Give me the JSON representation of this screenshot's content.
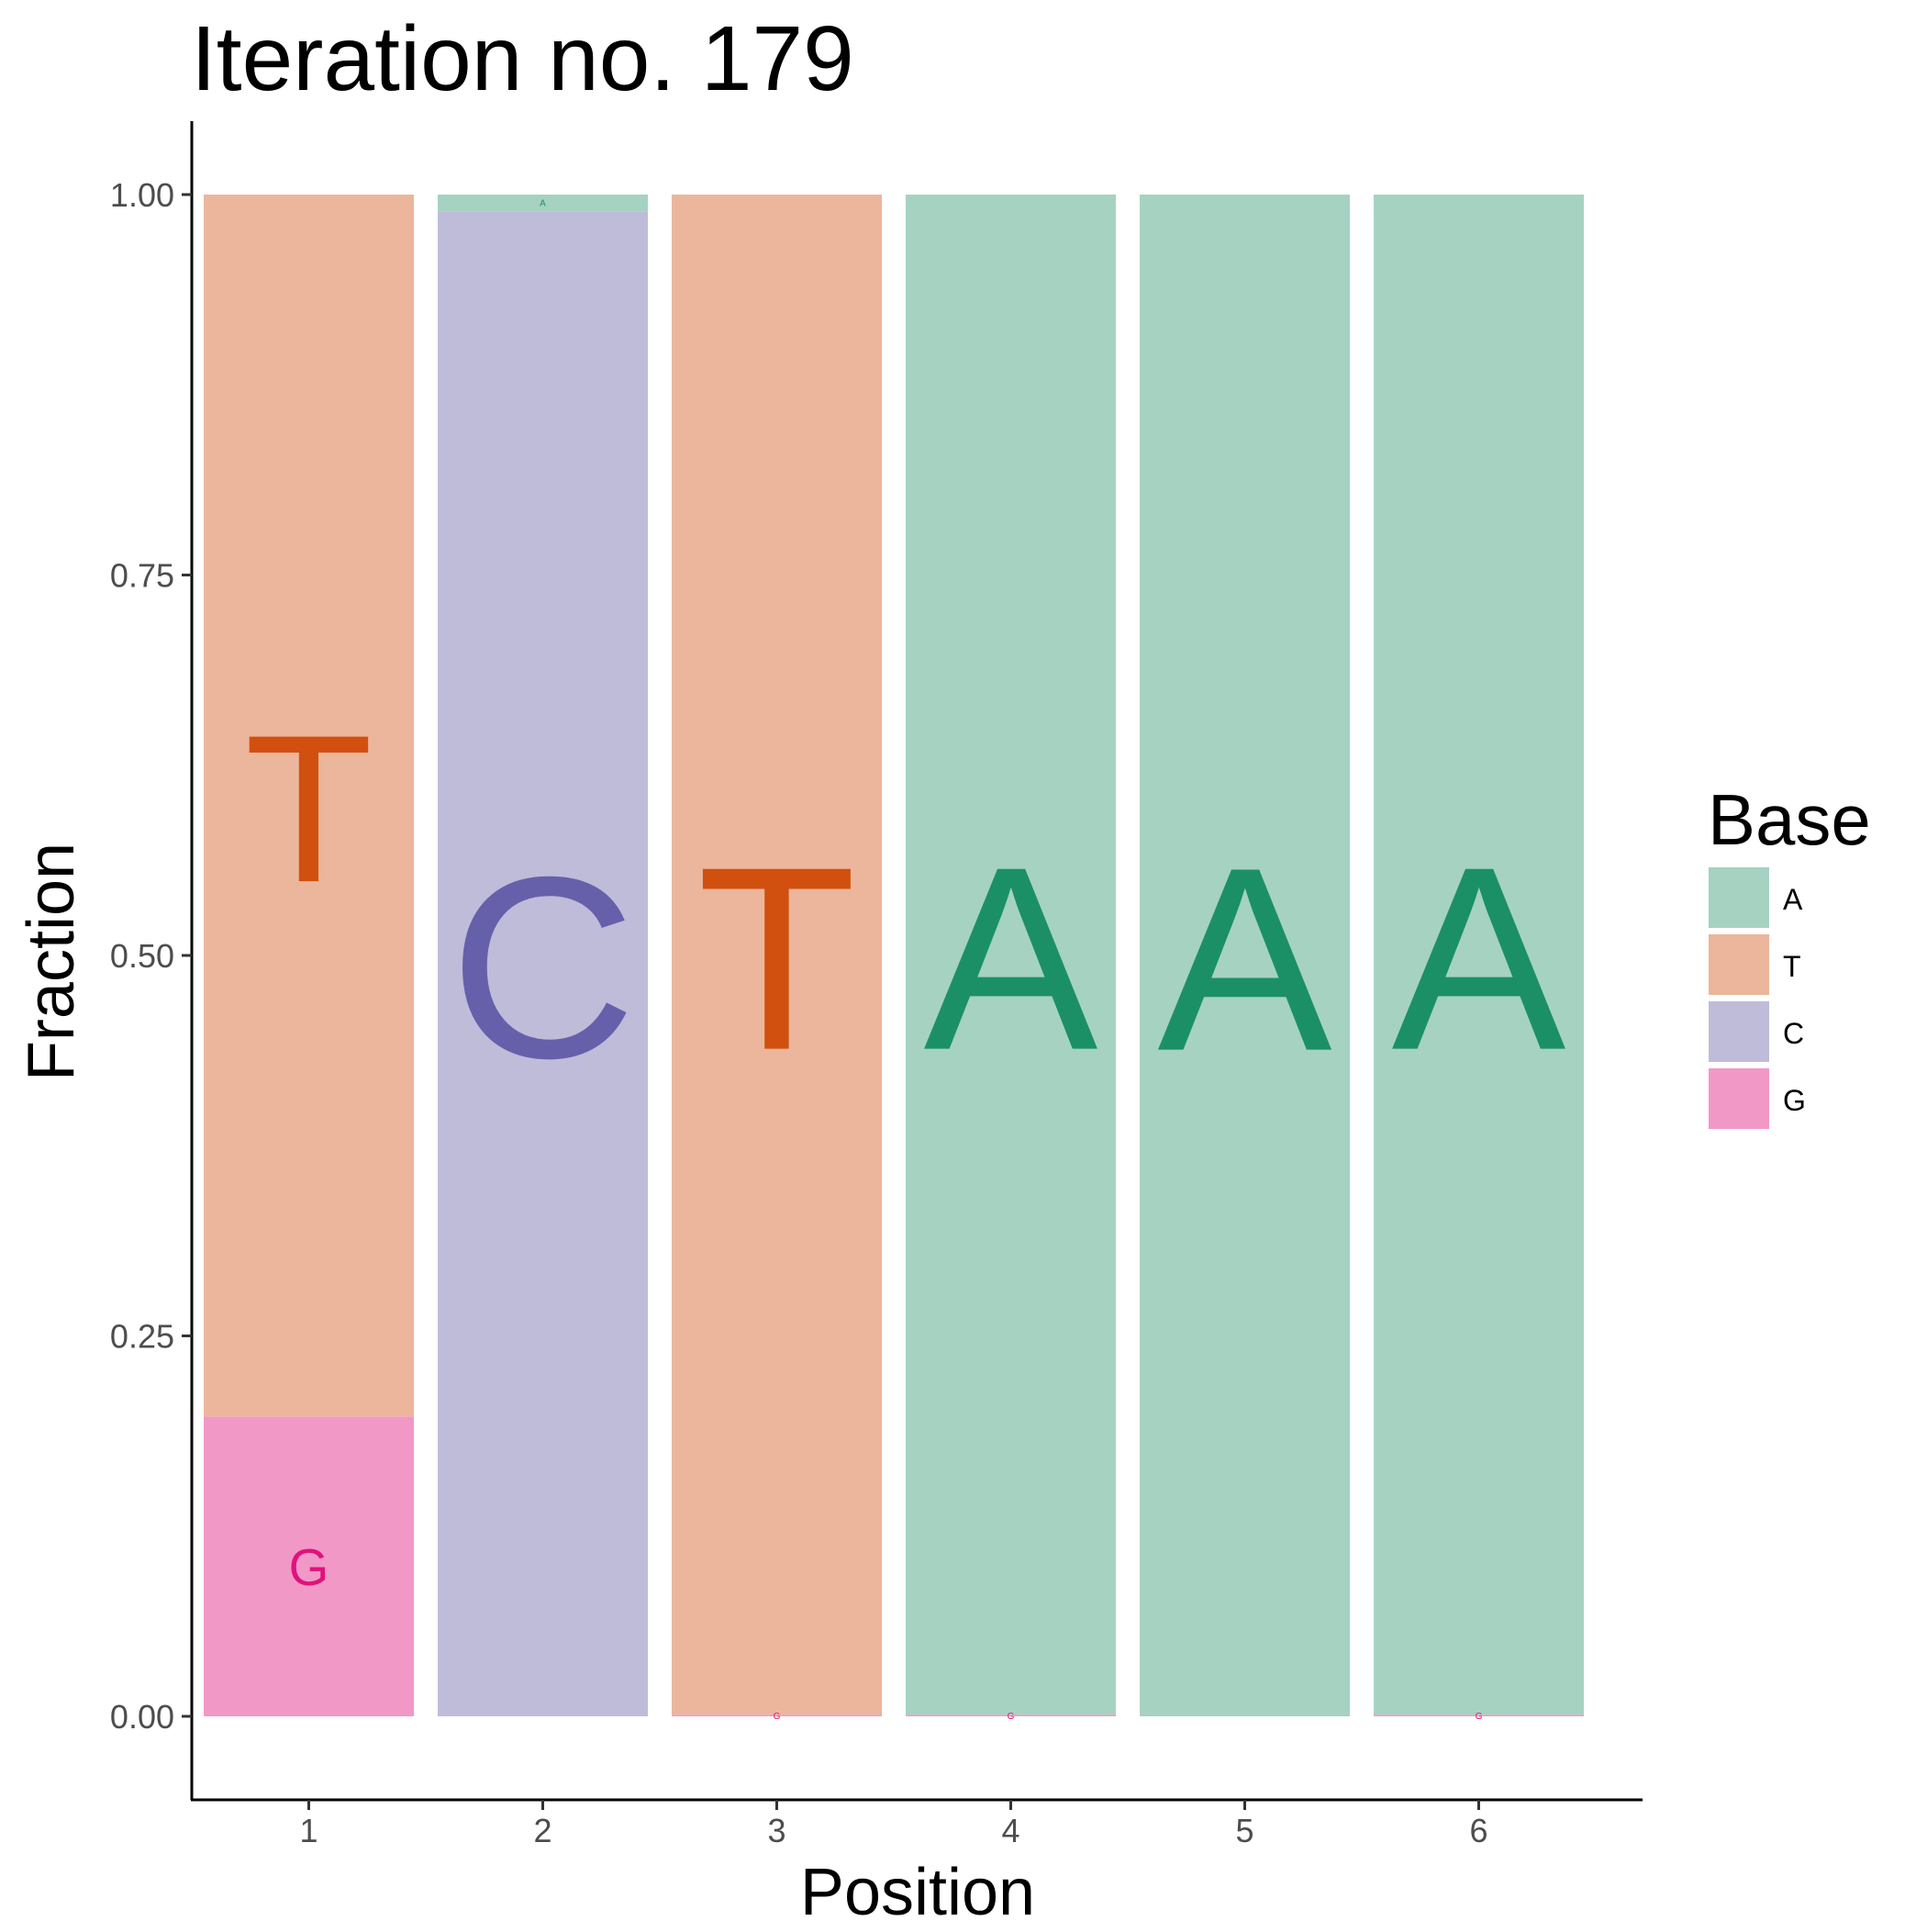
{
  "chart_data": {
    "type": "bar",
    "stacked": true,
    "title": "Iteration no. 179",
    "xlabel": "Position",
    "ylabel": "Fraction",
    "categories": [
      "1",
      "2",
      "3",
      "4",
      "5",
      "6"
    ],
    "ylim": [
      -0.05,
      1.05
    ],
    "yticks": [
      "0.00",
      "0.25",
      "0.50",
      "0.75",
      "1.00"
    ],
    "grid": false,
    "legend": {
      "title": "Base",
      "placement": "right"
    },
    "series": [
      {
        "name": "A",
        "color": "#a6d2c1",
        "letter_color": "#1b9066",
        "values": [
          0.0,
          0.011,
          0.0,
          0.999,
          1.0,
          0.999
        ]
      },
      {
        "name": "T",
        "color": "#ebb69c",
        "letter_color": "#d1500f",
        "values": [
          0.803,
          0.0,
          0.999,
          0.0,
          0.0,
          0.0
        ]
      },
      {
        "name": "C",
        "color": "#bebcd9",
        "letter_color": "#6660aa",
        "values": [
          0.0,
          0.989,
          0.0,
          0.0,
          0.0,
          0.0
        ]
      },
      {
        "name": "G",
        "color": "#f198c7",
        "letter_color": "#e0127c",
        "values": [
          0.197,
          0.0,
          0.001,
          0.001,
          0.0,
          0.001
        ]
      }
    ]
  }
}
